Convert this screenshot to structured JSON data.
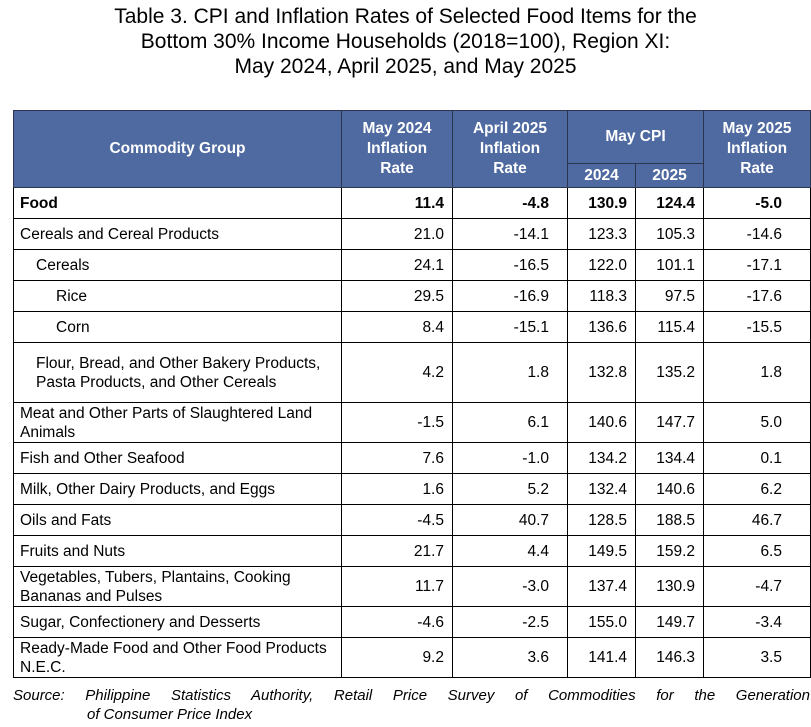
{
  "title": {
    "line1": "Table 3. CPI and Inflation Rates of Selected Food Items for the",
    "line2": "Bottom 30% Income Households (2018=100), Region XI:",
    "line3": "May 2024, April 2025, and May 2025"
  },
  "table": {
    "headers": {
      "commodity": "Commodity Group",
      "may2024_line1": "May 2024",
      "may2024_line2": "Inflation",
      "may2024_line3": "Rate",
      "apr2025_line1": "April 2025",
      "apr2025_line2": "Inflation",
      "apr2025_line3": "Rate",
      "may_cpi": "May CPI",
      "cpi_2024": "2024",
      "cpi_2025": "2025",
      "may2025_line1": "May 2025",
      "may2025_line2": "Inflation",
      "may2025_line3": "Rate"
    },
    "rows": [
      {
        "name": "Food",
        "level": 0,
        "bold": true,
        "may2024": "11.4",
        "apr2025": "-4.8",
        "cpi2024": "130.9",
        "cpi2025": "124.4",
        "may2025": "-5.0"
      },
      {
        "name": "Cereals and Cereal Products",
        "level": 0,
        "bold": false,
        "may2024": "21.0",
        "apr2025": "-14.1",
        "cpi2024": "123.3",
        "cpi2025": "105.3",
        "may2025": "-14.6"
      },
      {
        "name": "Cereals",
        "level": 1,
        "bold": false,
        "may2024": "24.1",
        "apr2025": "-16.5",
        "cpi2024": "122.0",
        "cpi2025": "101.1",
        "may2025": "-17.1"
      },
      {
        "name": "Rice",
        "level": 2,
        "bold": false,
        "may2024": "29.5",
        "apr2025": "-16.9",
        "cpi2024": "118.3",
        "cpi2025": "97.5",
        "may2025": "-17.6"
      },
      {
        "name": "Corn",
        "level": 2,
        "bold": false,
        "may2024": "8.4",
        "apr2025": "-15.1",
        "cpi2024": "136.6",
        "cpi2025": "115.4",
        "may2025": "-15.5"
      },
      {
        "name": "Flour, Bread, and Other Bakery Products, Pasta Products, and Other Cereals",
        "level": 1,
        "bold": false,
        "may2024": "4.2",
        "apr2025": "1.8",
        "cpi2024": "132.8",
        "cpi2025": "135.2",
        "may2025": "1.8"
      },
      {
        "name": "Meat and Other Parts of Slaughtered Land Animals",
        "level": 0,
        "bold": false,
        "may2024": "-1.5",
        "apr2025": "6.1",
        "cpi2024": "140.6",
        "cpi2025": "147.7",
        "may2025": "5.0"
      },
      {
        "name": "Fish and Other Seafood",
        "level": 0,
        "bold": false,
        "may2024": "7.6",
        "apr2025": "-1.0",
        "cpi2024": "134.2",
        "cpi2025": "134.4",
        "may2025": "0.1"
      },
      {
        "name": "Milk, Other Dairy Products, and Eggs",
        "level": 0,
        "bold": false,
        "may2024": "1.6",
        "apr2025": "5.2",
        "cpi2024": "132.4",
        "cpi2025": "140.6",
        "may2025": "6.2"
      },
      {
        "name": "Oils and Fats",
        "level": 0,
        "bold": false,
        "may2024": "-4.5",
        "apr2025": "40.7",
        "cpi2024": "128.5",
        "cpi2025": "188.5",
        "may2025": "46.7"
      },
      {
        "name": "Fruits and Nuts",
        "level": 0,
        "bold": false,
        "may2024": "21.7",
        "apr2025": "4.4",
        "cpi2024": "149.5",
        "cpi2025": "159.2",
        "may2025": "6.5"
      },
      {
        "name": "Vegetables, Tubers, Plantains, Cooking Bananas and Pulses",
        "level": 0,
        "bold": false,
        "may2024": "11.7",
        "apr2025": "-3.0",
        "cpi2024": "137.4",
        "cpi2025": "130.9",
        "may2025": "-4.7"
      },
      {
        "name": "Sugar, Confectionery and Desserts",
        "level": 0,
        "bold": false,
        "may2024": "-4.6",
        "apr2025": "-2.5",
        "cpi2024": "155.0",
        "cpi2025": "149.7",
        "may2025": "-3.4"
      },
      {
        "name": "Ready-Made Food and Other Food Products N.E.C.",
        "level": 0,
        "bold": false,
        "may2024": "9.2",
        "apr2025": "3.6",
        "cpi2024": "141.4",
        "cpi2025": "146.3",
        "may2025": "3.5"
      }
    ]
  },
  "source": {
    "line1": "Source:  Philippine  Statistics  Authority,  Retail  Price  Survey  of  Commodities  for  the  Generation",
    "line2": "of Consumer Price Index"
  }
}
